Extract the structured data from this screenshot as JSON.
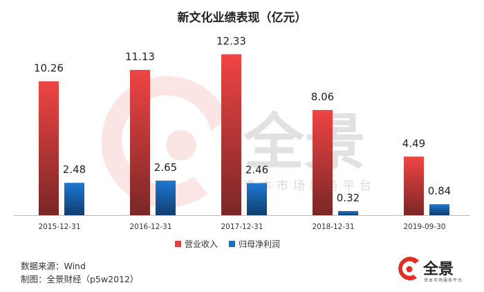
{
  "chart_data": {
    "type": "bar",
    "title": "新文化业绩表现（亿元）",
    "categories": [
      "2015-12-31",
      "2016-12-31",
      "2017-12-31",
      "2018-12-31",
      "2019-09-30"
    ],
    "series": [
      {
        "name": "营业收入",
        "values": [
          10.26,
          11.13,
          12.33,
          8.06,
          4.49
        ],
        "labels": [
          "10.26",
          "11.13",
          "12.33",
          "8.06",
          "4.49"
        ],
        "color": "#e8403e"
      },
      {
        "name": "归母净利润",
        "values": [
          2.48,
          2.65,
          2.46,
          0.32,
          0.84
        ],
        "labels": [
          "2.48",
          "2.65",
          "2.46",
          "0.32",
          "0.84"
        ],
        "color": "#1a6fc2"
      }
    ],
    "ylim": [
      0,
      13.2
    ],
    "grid": false,
    "legend": "bottom"
  },
  "footer": {
    "source": "数据来源：Wind",
    "credit": "制图：全景财经（p5w2012）"
  },
  "watermark": {
    "brand": "全景",
    "tagline": "资本市场服务平台"
  },
  "logo": {
    "brand": "全景",
    "tagline": "资本市场服务平台"
  },
  "colors": {
    "accent": "#e8403e",
    "secondary": "#1a6fc2",
    "watermark": "#e45b5b"
  }
}
